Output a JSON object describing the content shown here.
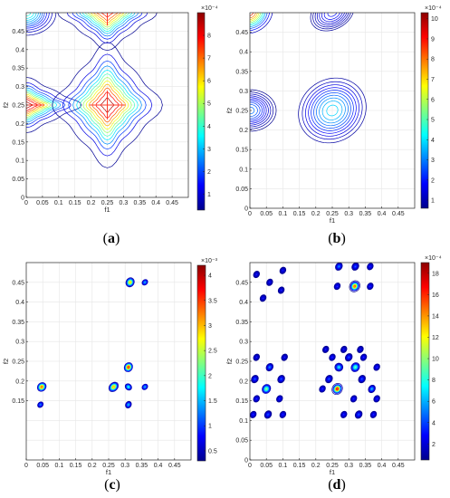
{
  "chart_data": [
    {
      "type": "contour",
      "panel_label": "a",
      "xlabel": "f1",
      "ylabel": "f2",
      "xlim": [
        0,
        0.5
      ],
      "ylim": [
        0,
        0.5
      ],
      "xticks": [
        "0",
        "0.05",
        "0.1",
        "0.15",
        "0.2",
        "0.25",
        "0.3",
        "0.35",
        "0.4",
        "0.45"
      ],
      "yticks": [
        "0",
        "0.05",
        "0.1",
        "0.15",
        "0.2",
        "0.25",
        "0.3",
        "0.35",
        "0.4",
        "0.45"
      ],
      "grid": true,
      "colorbar": {
        "min": 0.3,
        "max": 9,
        "ticks": [
          "1",
          "2",
          "3",
          "4",
          "5",
          "6",
          "7",
          "8"
        ],
        "exponent": "×10⁻⁴"
      },
      "peaks": [
        {
          "x": 0.0,
          "y": 0.25,
          "peak": 9,
          "sx": 0.05,
          "sy": 0.022,
          "rot": 0,
          "star": true
        },
        {
          "x": 0.25,
          "y": 0.25,
          "peak": 9,
          "sx": 0.05,
          "sy": 0.05,
          "rot": 0,
          "star": true
        },
        {
          "x": 0.25,
          "y": 0.5,
          "peak": 8,
          "sx": 0.045,
          "sy": 0.03,
          "rot": 0,
          "star": true
        },
        {
          "x": 0.0,
          "y": 0.5,
          "peak": 4,
          "sx": 0.045,
          "sy": 0.03,
          "rot": 0,
          "star": false
        }
      ]
    },
    {
      "type": "contour",
      "panel_label": "b",
      "xlabel": "f1",
      "ylabel": "f2",
      "xlim": [
        0,
        0.5
      ],
      "ylim": [
        0,
        0.5
      ],
      "xticks": [
        "0",
        "0.05",
        "0.1",
        "0.15",
        "0.2",
        "0.25",
        "0.3",
        "0.35",
        "0.4",
        "0.45"
      ],
      "yticks": [
        "0",
        "0.05",
        "0.1",
        "0.15",
        "0.2",
        "0.25",
        "0.3",
        "0.35",
        "0.4",
        "0.45"
      ],
      "grid": true,
      "colorbar": {
        "min": 0.6,
        "max": 10.3,
        "ticks": [
          "1",
          "2",
          "3",
          "4",
          "5",
          "6",
          "7",
          "8",
          "9",
          "10"
        ],
        "exponent": "×10⁻⁴"
      },
      "peaks": [
        {
          "x": 0.0,
          "y": 0.25,
          "peak": 3,
          "sx": 0.045,
          "sy": 0.03,
          "rot": 0,
          "star": false
        },
        {
          "x": 0.25,
          "y": 0.25,
          "peak": 4,
          "sx": 0.06,
          "sy": 0.045,
          "rot": -0.6,
          "star": false
        },
        {
          "x": 0.25,
          "y": 0.5,
          "peak": 2,
          "sx": 0.05,
          "sy": 0.03,
          "rot": -0.5,
          "star": false
        },
        {
          "x": 0.0,
          "y": 0.5,
          "peak": 9,
          "sx": 0.035,
          "sy": 0.025,
          "rot": -0.5,
          "star": false
        }
      ]
    },
    {
      "type": "contour",
      "panel_label": "c",
      "xlabel": "f1",
      "ylabel": "f2",
      "xlim": [
        0,
        0.5
      ],
      "ylim": [
        0,
        0.5
      ],
      "xticks": [
        "0",
        "0.05",
        "0.1",
        "0.15",
        "0.2",
        "0.25",
        "0.3",
        "0.35",
        "0.4",
        "0.45"
      ],
      "yticks": [
        "0.15",
        "0.2",
        "0.25",
        "0.3",
        "0.35",
        "0.4",
        "0.45"
      ],
      "grid": true,
      "colorbar": {
        "min": 0.3,
        "max": 4.2,
        "ticks": [
          "0.5",
          "1",
          "1.5",
          "2",
          "2.5",
          "3",
          "3.5",
          "4"
        ],
        "exponent": "×10⁻³"
      },
      "peaks": [
        {
          "x": 0.047,
          "y": 0.185,
          "peak": 3.5,
          "sx": 0.007,
          "sy": 0.005,
          "rot": -0.8,
          "star": false
        },
        {
          "x": 0.043,
          "y": 0.14,
          "peak": 1.2,
          "sx": 0.006,
          "sy": 0.004,
          "rot": -0.8,
          "star": false
        },
        {
          "x": 0.265,
          "y": 0.185,
          "peak": 3.2,
          "sx": 0.008,
          "sy": 0.005,
          "rot": -0.8,
          "star": false
        },
        {
          "x": 0.31,
          "y": 0.235,
          "peak": 3.8,
          "sx": 0.007,
          "sy": 0.005,
          "rot": -1.1,
          "star": false
        },
        {
          "x": 0.31,
          "y": 0.185,
          "peak": 1.8,
          "sx": 0.005,
          "sy": 0.005,
          "rot": -0.8,
          "star": false
        },
        {
          "x": 0.31,
          "y": 0.14,
          "peak": 1.5,
          "sx": 0.006,
          "sy": 0.004,
          "rot": -1.1,
          "star": false
        },
        {
          "x": 0.36,
          "y": 0.185,
          "peak": 1.4,
          "sx": 0.006,
          "sy": 0.004,
          "rot": -0.8,
          "star": false
        },
        {
          "x": 0.315,
          "y": 0.45,
          "peak": 3.0,
          "sx": 0.007,
          "sy": 0.005,
          "rot": -1.1,
          "star": false
        },
        {
          "x": 0.36,
          "y": 0.45,
          "peak": 1.4,
          "sx": 0.006,
          "sy": 0.004,
          "rot": -0.8,
          "star": false
        }
      ]
    },
    {
      "type": "contour",
      "panel_label": "d",
      "xlabel": "f1",
      "ylabel": "f2",
      "xlim": [
        0,
        0.5
      ],
      "ylim": [
        0,
        0.5
      ],
      "xticks": [
        "0",
        "0.05",
        "0.1",
        "0.15",
        "0.2",
        "0.25",
        "0.3",
        "0.35",
        "0.4",
        "0.45"
      ],
      "yticks": [
        "0",
        "0.05",
        "0.1",
        "0.15",
        "0.2",
        "0.25",
        "0.3",
        "0.35",
        "0.4",
        "0.45"
      ],
      "grid": true,
      "colorbar": {
        "min": 0.5,
        "max": 19,
        "ticks": [
          "2",
          "4",
          "6",
          "8",
          "10",
          "12",
          "14",
          "16",
          "18"
        ],
        "exponent": "×10⁻⁴"
      },
      "peaks": [
        {
          "x": 0.265,
          "y": 0.18,
          "peak": 18,
          "sx": 0.007,
          "sy": 0.005,
          "rot": -1.0,
          "star": false
        },
        {
          "x": 0.318,
          "y": 0.44,
          "peak": 16,
          "sx": 0.007,
          "sy": 0.005,
          "rot": -1.0,
          "star": false
        },
        {
          "x": 0.05,
          "y": 0.18,
          "peak": 10,
          "sx": 0.007,
          "sy": 0.005,
          "rot": -1.0,
          "star": false
        },
        {
          "x": 0.32,
          "y": 0.235,
          "peak": 9,
          "sx": 0.007,
          "sy": 0.005,
          "rot": -1.0,
          "star": false
        },
        {
          "x": 0.27,
          "y": 0.235,
          "peak": 7,
          "sx": 0.006,
          "sy": 0.005,
          "rot": -1.0,
          "star": false
        },
        {
          "x": 0.37,
          "y": 0.18,
          "peak": 6,
          "sx": 0.006,
          "sy": 0.004,
          "rot": -1.0,
          "star": false
        },
        {
          "x": 0.06,
          "y": 0.235,
          "peak": 5,
          "sx": 0.006,
          "sy": 0.004,
          "rot": -1.0,
          "star": false
        },
        {
          "x": 0.27,
          "y": 0.49,
          "peak": 5,
          "sx": 0.006,
          "sy": 0.004,
          "rot": -1.0,
          "star": false
        },
        {
          "x": 0.32,
          "y": 0.49,
          "peak": 4,
          "sx": 0.006,
          "sy": 0.004,
          "rot": -1.0,
          "star": false
        },
        {
          "x": 0.365,
          "y": 0.49,
          "peak": 3,
          "sx": 0.006,
          "sy": 0.004,
          "rot": -1.0,
          "star": false
        },
        {
          "x": 0.365,
          "y": 0.44,
          "peak": 3,
          "sx": 0.006,
          "sy": 0.004,
          "rot": -1.0,
          "star": false
        },
        {
          "x": 0.265,
          "y": 0.44,
          "peak": 3,
          "sx": 0.006,
          "sy": 0.004,
          "rot": -1.0,
          "star": false
        },
        {
          "x": 0.24,
          "y": 0.205,
          "peak": 4,
          "sx": 0.006,
          "sy": 0.004,
          "rot": -1.0,
          "star": false
        },
        {
          "x": 0.34,
          "y": 0.205,
          "peak": 4,
          "sx": 0.006,
          "sy": 0.004,
          "rot": -1.0,
          "star": false
        },
        {
          "x": 0.3,
          "y": 0.26,
          "peak": 4,
          "sx": 0.006,
          "sy": 0.004,
          "rot": -1.0,
          "star": false
        },
        {
          "x": 0.25,
          "y": 0.26,
          "peak": 3,
          "sx": 0.006,
          "sy": 0.004,
          "rot": -1.0,
          "star": false
        },
        {
          "x": 0.345,
          "y": 0.26,
          "peak": 3,
          "sx": 0.006,
          "sy": 0.004,
          "rot": -1.0,
          "star": false
        },
        {
          "x": 0.22,
          "y": 0.18,
          "peak": 3,
          "sx": 0.006,
          "sy": 0.004,
          "rot": -1.0,
          "star": false
        },
        {
          "x": 0.315,
          "y": 0.155,
          "peak": 3,
          "sx": 0.006,
          "sy": 0.004,
          "rot": -1.0,
          "star": false
        },
        {
          "x": 0.33,
          "y": 0.115,
          "peak": 4,
          "sx": 0.006,
          "sy": 0.004,
          "rot": -1.0,
          "star": false
        },
        {
          "x": 0.285,
          "y": 0.115,
          "peak": 3,
          "sx": 0.006,
          "sy": 0.004,
          "rot": -1.0,
          "star": false
        },
        {
          "x": 0.375,
          "y": 0.115,
          "peak": 3,
          "sx": 0.006,
          "sy": 0.004,
          "rot": -1.0,
          "star": false
        },
        {
          "x": 0.285,
          "y": 0.28,
          "peak": 2.5,
          "sx": 0.006,
          "sy": 0.004,
          "rot": -1.0,
          "star": false
        },
        {
          "x": 0.335,
          "y": 0.28,
          "peak": 2.5,
          "sx": 0.006,
          "sy": 0.004,
          "rot": -1.0,
          "star": false
        },
        {
          "x": 0.23,
          "y": 0.28,
          "peak": 2.5,
          "sx": 0.006,
          "sy": 0.004,
          "rot": -1.0,
          "star": false
        },
        {
          "x": 0.385,
          "y": 0.235,
          "peak": 3,
          "sx": 0.006,
          "sy": 0.004,
          "rot": -1.0,
          "star": false
        },
        {
          "x": 0.385,
          "y": 0.155,
          "peak": 3,
          "sx": 0.006,
          "sy": 0.004,
          "rot": -1.0,
          "star": false
        },
        {
          "x": 0.055,
          "y": 0.115,
          "peak": 4,
          "sx": 0.006,
          "sy": 0.004,
          "rot": -1.0,
          "star": false
        },
        {
          "x": 0.1,
          "y": 0.115,
          "peak": 3,
          "sx": 0.006,
          "sy": 0.004,
          "rot": -1.0,
          "star": false
        },
        {
          "x": 0.01,
          "y": 0.115,
          "peak": 3,
          "sx": 0.006,
          "sy": 0.004,
          "rot": -1.0,
          "star": false
        },
        {
          "x": 0.015,
          "y": 0.205,
          "peak": 4,
          "sx": 0.006,
          "sy": 0.004,
          "rot": -1.0,
          "star": false
        },
        {
          "x": 0.095,
          "y": 0.205,
          "peak": 4,
          "sx": 0.006,
          "sy": 0.004,
          "rot": -1.0,
          "star": false
        },
        {
          "x": 0.02,
          "y": 0.155,
          "peak": 3,
          "sx": 0.006,
          "sy": 0.004,
          "rot": -1.0,
          "star": false
        },
        {
          "x": 0.09,
          "y": 0.155,
          "peak": 3,
          "sx": 0.006,
          "sy": 0.004,
          "rot": -1.0,
          "star": false
        },
        {
          "x": 0.02,
          "y": 0.26,
          "peak": 2.5,
          "sx": 0.006,
          "sy": 0.004,
          "rot": -1.0,
          "star": false
        },
        {
          "x": 0.105,
          "y": 0.26,
          "peak": 2.5,
          "sx": 0.006,
          "sy": 0.004,
          "rot": -1.0,
          "star": false
        },
        {
          "x": 0.02,
          "y": 0.47,
          "peak": 2.5,
          "sx": 0.006,
          "sy": 0.004,
          "rot": -1.0,
          "star": false
        },
        {
          "x": 0.06,
          "y": 0.45,
          "peak": 2.5,
          "sx": 0.006,
          "sy": 0.004,
          "rot": -1.0,
          "star": false
        },
        {
          "x": 0.04,
          "y": 0.41,
          "peak": 2.5,
          "sx": 0.006,
          "sy": 0.004,
          "rot": -1.0,
          "star": false
        },
        {
          "x": 0.095,
          "y": 0.43,
          "peak": 2.5,
          "sx": 0.006,
          "sy": 0.004,
          "rot": -1.0,
          "star": false
        },
        {
          "x": 0.1,
          "y": 0.48,
          "peak": 2.5,
          "sx": 0.006,
          "sy": 0.004,
          "rot": -1.0,
          "star": false
        }
      ]
    }
  ]
}
